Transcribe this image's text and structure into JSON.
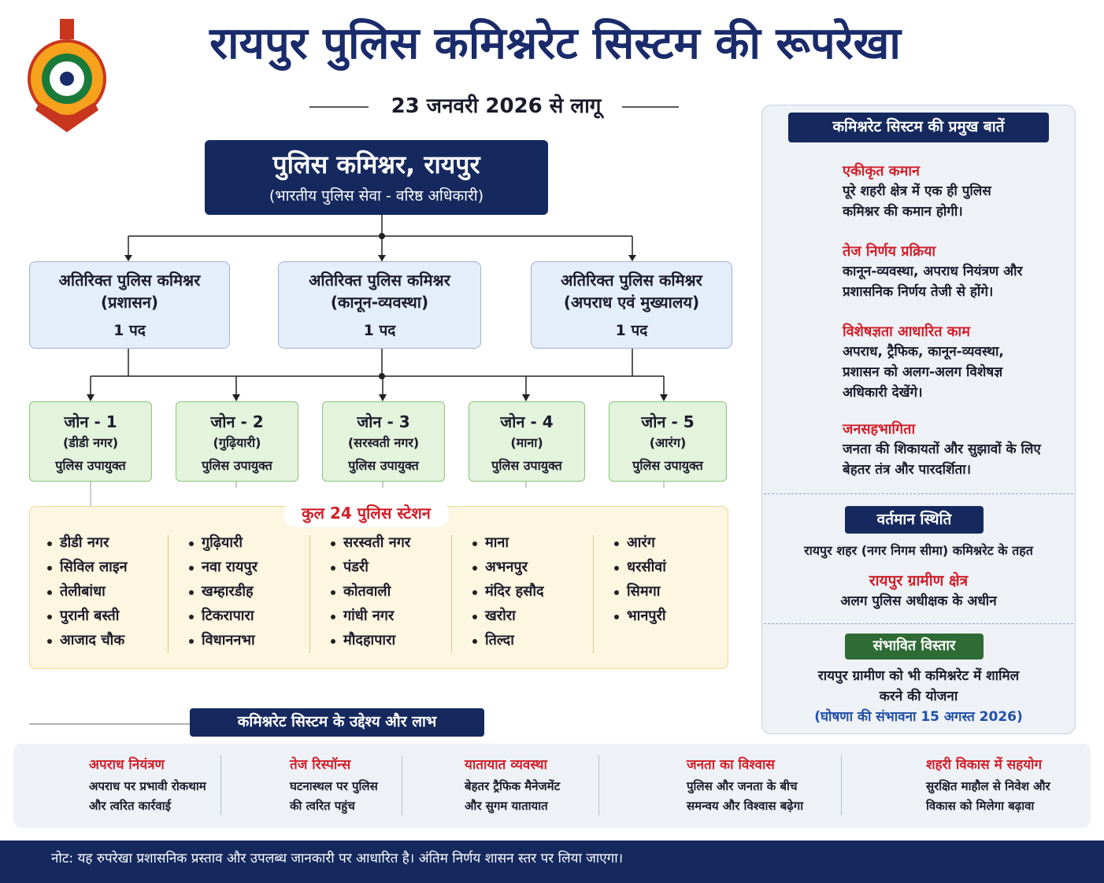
{
  "header": {
    "title": "रायपुर पुलिस कमिश्नरेट सिस्टम की रूपरेखा",
    "subtitle": "23 जनवरी 2026 से लागू"
  },
  "commissioner": {
    "title": "पुलिस कमिश्नर, रायपुर",
    "subtitle": "(भारतीय पुलिस सेवा - वरिष्ठ अधिकारी)"
  },
  "additional_commissioners": [
    {
      "title": "अतिरिक्त पुलिस कमिश्नर",
      "dept": "(प्रशासन)",
      "posts": "1 पद"
    },
    {
      "title": "अतिरिक्त पुलिस कमिश्नर",
      "dept": "(कानून-व्यवस्था)",
      "posts": "1 पद"
    },
    {
      "title": "अतिरिक्त पुलिस कमिश्नर",
      "dept": "(अपराध एवं मुख्यालय)",
      "posts": "1 पद"
    }
  ],
  "zones": [
    {
      "name": "जोन - 1",
      "area": "(डीडी नगर)",
      "role": "पुलिस उपायुक्त"
    },
    {
      "name": "जोन - 2",
      "area": "(गुढ़ियारी)",
      "role": "पुलिस उपायुक्त"
    },
    {
      "name": "जोन - 3",
      "area": "(सरस्वती नगर)",
      "role": "पुलिस उपायुक्त"
    },
    {
      "name": "जोन - 4",
      "area": "(माना)",
      "role": "पुलिस उपायुक्त"
    },
    {
      "name": "जोन - 5",
      "area": "(आरंग)",
      "role": "पुलिस उपायुक्त"
    }
  ],
  "stations": {
    "heading": "कुल 24 पुलिस स्टेशन",
    "columns": [
      [
        "डीडी नगर",
        "सिविल लाइन",
        "तेलीबांधा",
        "पुरानी बस्ती",
        "आजाद चौक"
      ],
      [
        "गुढ़ियारी",
        "नवा रायपुर",
        "खम्हारडीह",
        "टिकरापारा",
        "विधाननभा"
      ],
      [
        "सरस्वती नगर",
        "पंडरी",
        "कोतवाली",
        "गांधी नगर",
        "मौदहापारा"
      ],
      [
        "माना",
        "अभनपुर",
        "मंदिर हसौद",
        "खरोरा",
        "तिल्दा"
      ],
      [
        "आरंग",
        "धरसीवां",
        "सिमगा",
        "भानपुरी"
      ]
    ]
  },
  "sidebar": {
    "heading": "कमिश्नरेट सिस्टम की प्रमुख बातें",
    "items": [
      {
        "title": "एकीकृत कमान",
        "lines": [
          "पूरे शहरी क्षेत्र में एक ही पुलिस",
          "कमिश्नर की कमान होगी।"
        ]
      },
      {
        "title": "तेज निर्णय प्रक्रिया",
        "lines": [
          "कानून-व्यवस्था, अपराध नियंत्रण और",
          "प्रशासनिक निर्णय तेजी से होंगे।"
        ]
      },
      {
        "title": "विशेषज्ञता आधारित काम",
        "lines": [
          "अपराध, ट्रैफिक, कानून-व्यवस्था,",
          "प्रशासन को अलग-अलग विशेषज्ञ",
          "अधिकारी देखेंगे।"
        ]
      },
      {
        "title": "जनसहभागिता",
        "lines": [
          "जनता की शिकायतों और सुझावों के लिए",
          "बेहतर तंत्र और पारदर्शिता।"
        ]
      }
    ],
    "status": {
      "heading": "वर्तमान स्थिति",
      "text": "रायपुर शहर (नगर निगम सीमा) कमिश्नरेट के तहत",
      "rural_title": "रायपुर ग्रामीण क्षेत्र",
      "rural_text": "अलग पुलिस अधीक्षक के अधीन"
    },
    "expansion": {
      "heading": "संभावित विस्तार",
      "lines": [
        "रायपुर ग्रामीण को भी कमिश्नरेट में शामिल",
        "करने की योजना"
      ],
      "note": "(घोषणा की संभावना 15 अगस्त 2026)"
    }
  },
  "benefits": {
    "heading": "कमिश्नरेट सिस्टम के उद्देश्य और लाभ",
    "items": [
      {
        "title": "अपराध नियंत्रण",
        "lines": [
          "अपराध पर प्रभावी रोकथाम",
          "और त्वरित कार्रवाई"
        ]
      },
      {
        "title": "तेज रिस्पॉन्स",
        "lines": [
          "घटनास्थल पर पुलिस",
          "की त्वरित पहुंच"
        ]
      },
      {
        "title": "यातायात व्यवस्था",
        "lines": [
          "बेहतर ट्रैफिक मैनेजमेंट",
          "और सुगम यातायात"
        ]
      },
      {
        "title": "जनता का विश्वास",
        "lines": [
          "पुलिस और जनता के बीच",
          "समन्वय और विश्वास बढ़ेगा"
        ]
      },
      {
        "title": "शहरी विकास में सहयोग",
        "lines": [
          "सुरक्षित माहौल से निवेश और",
          "विकास को मिलेगा बढ़ावा"
        ]
      }
    ]
  },
  "footer": {
    "note": "नोट: यह रुपरेखा प्रशासनिक प्रस्ताव और उपलब्ध जानकारी पर आधारित है। अंतिम निर्णय शासन स्तर पर लिया जाएगा।"
  }
}
